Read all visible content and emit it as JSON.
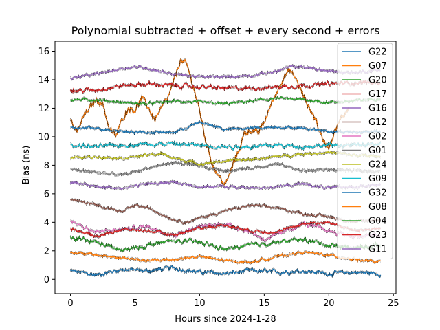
{
  "chart_data": {
    "type": "line",
    "title": "Polynomial subtracted + offset + every second + errors",
    "xlabel": "Hours since 2024-1-28",
    "ylabel": "Bias (ns)",
    "xlim": [
      -1.2,
      25.2
    ],
    "ylim": [
      -1.0,
      16.7
    ],
    "xticks": [
      0,
      5,
      10,
      15,
      20,
      25
    ],
    "yticks": [
      0,
      2,
      4,
      6,
      8,
      10,
      12,
      14,
      16
    ],
    "grid": false,
    "legend_position": "top-right",
    "series": [
      {
        "name": "G22",
        "color": "#1f77b4",
        "values": [
          [
            0,
            0.6
          ],
          [
            2,
            0.3
          ],
          [
            4,
            0.7
          ],
          [
            6,
            0.6
          ],
          [
            8,
            0.8
          ],
          [
            10,
            0.5
          ],
          [
            12,
            0.4
          ],
          [
            14,
            0.6
          ],
          [
            16,
            0.5
          ],
          [
            18,
            0.6
          ],
          [
            20,
            0.4
          ],
          [
            22,
            0.5
          ],
          [
            24,
            0.4
          ]
        ]
      },
      {
        "name": "G07",
        "color": "#ff7f0e",
        "values": [
          [
            0,
            11.2
          ],
          [
            0.5,
            10.2
          ],
          [
            1.0,
            11.4
          ],
          [
            1.5,
            12.0
          ],
          [
            2.0,
            12.6
          ],
          [
            2.5,
            12.3
          ],
          [
            3.0,
            10.6
          ],
          [
            3.5,
            10.0
          ],
          [
            4.0,
            11.2
          ],
          [
            4.5,
            12.1
          ],
          [
            5.0,
            11.9
          ],
          [
            5.5,
            12.7
          ],
          [
            6.0,
            12.1
          ],
          [
            6.5,
            11.2
          ],
          [
            7.0,
            11.9
          ],
          [
            7.5,
            12.6
          ],
          [
            8.0,
            13.8
          ],
          [
            8.5,
            15.4
          ],
          [
            9.0,
            15.0
          ],
          [
            9.5,
            13.6
          ],
          [
            10.0,
            11.8
          ],
          [
            10.5,
            9.6
          ],
          [
            11.0,
            8.1
          ],
          [
            11.5,
            7.2
          ],
          [
            12.0,
            6.6
          ],
          [
            12.5,
            7.8
          ],
          [
            13.0,
            9.0
          ],
          [
            13.5,
            10.3
          ],
          [
            14.0,
            10.5
          ],
          [
            14.5,
            10.2
          ],
          [
            15.0,
            11.0
          ],
          [
            15.5,
            12.2
          ],
          [
            16.0,
            13.2
          ],
          [
            16.5,
            14.3
          ],
          [
            17.0,
            14.6
          ],
          [
            17.5,
            14.0
          ],
          [
            18.0,
            12.9
          ],
          [
            18.5,
            12.0
          ],
          [
            19.0,
            11.2
          ],
          [
            19.5,
            9.8
          ],
          [
            20.0,
            9.3
          ],
          [
            20.5,
            10.5
          ],
          [
            21.0,
            11.3
          ],
          [
            21.5,
            12.0
          ]
        ]
      },
      {
        "name": "G20",
        "color": "#2ca02c",
        "values": [
          [
            0,
            12.6
          ],
          [
            2,
            12.6
          ],
          [
            4,
            12.4
          ],
          [
            6,
            12.3
          ],
          [
            8,
            12.5
          ],
          [
            10,
            12.4
          ],
          [
            12,
            12.3
          ],
          [
            14,
            12.5
          ],
          [
            16,
            12.7
          ],
          [
            18,
            12.6
          ],
          [
            20,
            12.4
          ],
          [
            22,
            12.5
          ],
          [
            24,
            12.7
          ]
        ]
      },
      {
        "name": "G17",
        "color": "#d62728",
        "values": [
          [
            0,
            13.2
          ],
          [
            2,
            13.3
          ],
          [
            4,
            13.6
          ],
          [
            6,
            13.7
          ],
          [
            8,
            13.6
          ],
          [
            10,
            13.5
          ],
          [
            12,
            13.4
          ],
          [
            14,
            13.4
          ],
          [
            16,
            13.5
          ],
          [
            18,
            13.6
          ],
          [
            20,
            13.7
          ],
          [
            22,
            13.8
          ],
          [
            24,
            13.8
          ]
        ]
      },
      {
        "name": "G16",
        "color": "#9467bd",
        "values": [
          [
            0,
            14.1
          ],
          [
            2,
            14.4
          ],
          [
            4,
            14.8
          ],
          [
            5,
            14.9
          ],
          [
            6,
            14.8
          ],
          [
            8,
            14.4
          ],
          [
            10,
            14.2
          ],
          [
            12,
            14.2
          ],
          [
            14,
            14.3
          ],
          [
            16,
            14.6
          ],
          [
            17,
            14.9
          ],
          [
            18,
            14.9
          ],
          [
            20,
            14.6
          ],
          [
            22,
            14.5
          ],
          [
            24,
            14.7
          ]
        ]
      },
      {
        "name": "G12",
        "color": "#8c564b",
        "values": [
          [
            0,
            5.6
          ],
          [
            2,
            5.2
          ],
          [
            3,
            5.0
          ],
          [
            4,
            4.7
          ],
          [
            5,
            5.2
          ],
          [
            6,
            5.0
          ],
          [
            7,
            4.6
          ],
          [
            8,
            4.2
          ],
          [
            9,
            4.0
          ],
          [
            10,
            4.3
          ],
          [
            12,
            4.8
          ],
          [
            14,
            5.2
          ],
          [
            16,
            5.0
          ],
          [
            18,
            4.6
          ],
          [
            20,
            4.4
          ],
          [
            22,
            4.0
          ],
          [
            24,
            4.2
          ]
        ]
      },
      {
        "name": "G02",
        "color": "#e377c2",
        "values": [
          [
            0,
            4.1
          ],
          [
            2,
            3.3
          ],
          [
            4,
            3.5
          ],
          [
            6,
            3.7
          ],
          [
            8,
            3.1
          ],
          [
            10,
            3.7
          ],
          [
            12,
            3.9
          ],
          [
            14,
            3.3
          ],
          [
            15,
            2.8
          ],
          [
            16,
            3.1
          ],
          [
            18,
            3.9
          ],
          [
            20,
            3.4
          ],
          [
            22,
            3.0
          ],
          [
            24,
            3.1
          ]
        ]
      },
      {
        "name": "G01",
        "color": "#7f7f7f",
        "values": [
          [
            0,
            7.7
          ],
          [
            2,
            7.5
          ],
          [
            4,
            7.3
          ],
          [
            6,
            7.8
          ],
          [
            8,
            8.2
          ],
          [
            10,
            7.9
          ],
          [
            12,
            7.6
          ],
          [
            14,
            7.8
          ],
          [
            16,
            8.1
          ],
          [
            18,
            7.6
          ],
          [
            20,
            7.7
          ],
          [
            22,
            7.6
          ],
          [
            24,
            7.6
          ]
        ]
      },
      {
        "name": "G24",
        "color": "#bcbd22",
        "values": [
          [
            0,
            8.5
          ],
          [
            2,
            8.6
          ],
          [
            4,
            8.5
          ],
          [
            6,
            8.7
          ],
          [
            7,
            8.8
          ],
          [
            8,
            8.5
          ],
          [
            10,
            8.1
          ],
          [
            12,
            8.3
          ],
          [
            14,
            8.4
          ],
          [
            16,
            8.6
          ],
          [
            18,
            8.8
          ],
          [
            20,
            8.9
          ],
          [
            22,
            8.7
          ],
          [
            24,
            8.6
          ]
        ]
      },
      {
        "name": "G09",
        "color": "#17becf",
        "values": [
          [
            0,
            9.4
          ],
          [
            2,
            9.3
          ],
          [
            4,
            9.4
          ],
          [
            6,
            9.5
          ],
          [
            8,
            9.5
          ],
          [
            10,
            9.4
          ],
          [
            12,
            9.3
          ],
          [
            14,
            9.3
          ],
          [
            16,
            9.4
          ],
          [
            18,
            9.3
          ],
          [
            20,
            9.4
          ],
          [
            22,
            9.4
          ],
          [
            24,
            9.5
          ]
        ]
      },
      {
        "name": "G32",
        "color": "#1f77b4",
        "values": [
          [
            0,
            10.6
          ],
          [
            2,
            10.6
          ],
          [
            4,
            10.4
          ],
          [
            6,
            10.3
          ],
          [
            8,
            10.3
          ],
          [
            10,
            11.0
          ],
          [
            11,
            10.8
          ],
          [
            12,
            10.5
          ],
          [
            14,
            10.6
          ],
          [
            16,
            10.7
          ],
          [
            18,
            10.6
          ],
          [
            20,
            10.4
          ],
          [
            22,
            10.3
          ],
          [
            24,
            10.4
          ]
        ]
      },
      {
        "name": "G08",
        "color": "#ff7f0e",
        "values": [
          [
            0,
            1.9
          ],
          [
            2,
            1.7
          ],
          [
            4,
            1.5
          ],
          [
            6,
            1.3
          ],
          [
            8,
            1.4
          ],
          [
            10,
            1.6
          ],
          [
            12,
            1.3
          ],
          [
            14,
            1.2
          ],
          [
            16,
            1.6
          ],
          [
            18,
            1.9
          ],
          [
            20,
            1.7
          ],
          [
            22,
            1.4
          ],
          [
            24,
            1.2
          ]
        ]
      },
      {
        "name": "G04",
        "color": "#2ca02c",
        "values": [
          [
            0,
            2.9
          ],
          [
            2,
            2.6
          ],
          [
            4,
            2.0
          ],
          [
            6,
            2.4
          ],
          [
            8,
            2.7
          ],
          [
            10,
            2.6
          ],
          [
            12,
            2.1
          ],
          [
            14,
            2.4
          ],
          [
            16,
            2.6
          ],
          [
            18,
            2.8
          ],
          [
            20,
            2.4
          ],
          [
            22,
            2.2
          ],
          [
            24,
            2.4
          ]
        ]
      },
      {
        "name": "G23",
        "color": "#d62728",
        "values": [
          [
            0,
            3.6
          ],
          [
            2,
            3.0
          ],
          [
            4,
            3.5
          ],
          [
            6,
            3.4
          ],
          [
            8,
            3.1
          ],
          [
            10,
            3.6
          ],
          [
            12,
            3.8
          ],
          [
            14,
            3.4
          ],
          [
            16,
            3.3
          ],
          [
            18,
            3.9
          ],
          [
            20,
            4.0
          ],
          [
            22,
            3.4
          ],
          [
            24,
            3.6
          ]
        ]
      },
      {
        "name": "G11",
        "color": "#9467bd",
        "values": [
          [
            0,
            6.8
          ],
          [
            2,
            6.5
          ],
          [
            4,
            6.4
          ],
          [
            6,
            6.7
          ],
          [
            8,
            6.8
          ],
          [
            10,
            6.5
          ],
          [
            12,
            6.5
          ],
          [
            14,
            6.4
          ],
          [
            16,
            6.5
          ],
          [
            18,
            6.7
          ],
          [
            20,
            6.4
          ],
          [
            22,
            6.5
          ],
          [
            24,
            6.6
          ]
        ]
      }
    ]
  }
}
